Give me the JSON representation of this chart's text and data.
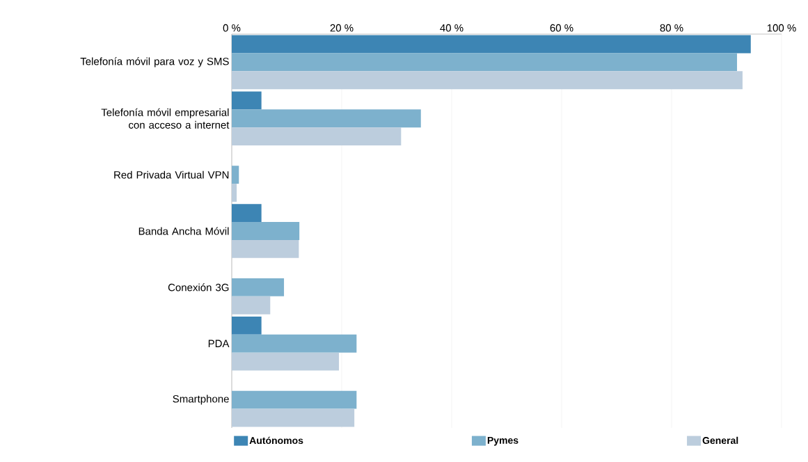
{
  "chart_data": {
    "type": "bar",
    "orientation": "horizontal",
    "categories": [
      "Telefonía móvil para voz y SMS",
      "Telefonía móvil empresarial con acceso a internet",
      "Red Privada Virtual VPN",
      "Banda Ancha Móvil",
      "Conexión 3G",
      "PDA",
      "Smartphone"
    ],
    "series": [
      {
        "name": "Autónomos",
        "color": "#3d85b4",
        "values": [
          94.4,
          5.4,
          null,
          5.4,
          null,
          5.4,
          null
        ]
      },
      {
        "name": "Pymes",
        "color": "#7db1cd",
        "values": [
          91.9,
          34.4,
          1.3,
          12.3,
          9.5,
          22.7,
          22.7
        ]
      },
      {
        "name": "General",
        "color": "#bccddd",
        "values": [
          92.9,
          30.8,
          0.9,
          12.2,
          7.0,
          19.5,
          22.3
        ]
      }
    ],
    "xlim": [
      0,
      100
    ],
    "xticks": [
      {
        "value": 0,
        "label": "0 %"
      },
      {
        "value": 20,
        "label": "20 %"
      },
      {
        "value": 40,
        "label": "40 %"
      },
      {
        "value": 60,
        "label": "60 %"
      },
      {
        "value": 80,
        "label": "80 %"
      },
      {
        "value": 100,
        "label": "100 %"
      }
    ],
    "grid": "x",
    "legend": "bottom"
  }
}
